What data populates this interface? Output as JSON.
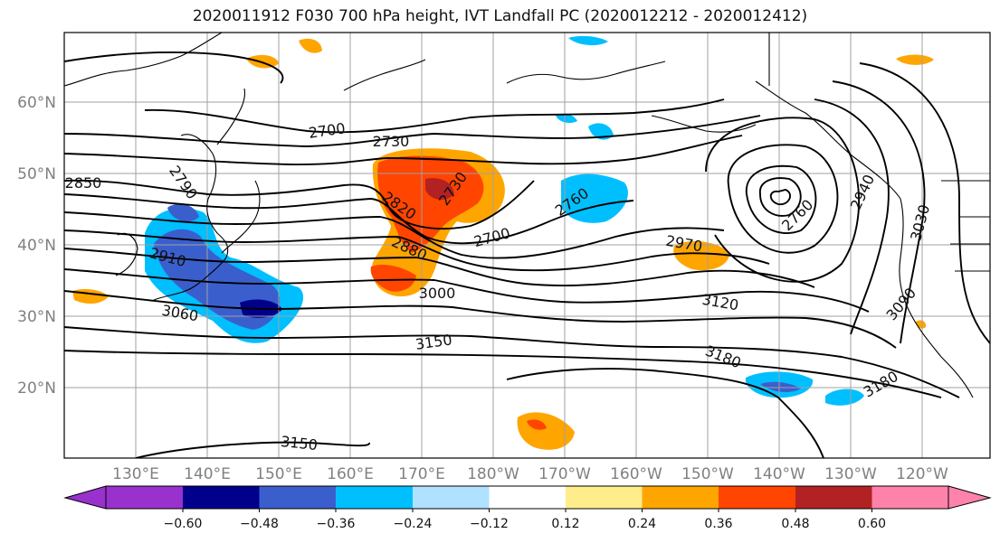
{
  "title": "2020011912 F030 700 hPa height, IVT Landfall PC (2020012212 - 2020012412)",
  "lat_labels": [
    "60°N",
    "50°N",
    "40°N",
    "30°N",
    "20°N"
  ],
  "lon_labels": [
    "130°E",
    "140°E",
    "150°E",
    "160°E",
    "170°E",
    "180°W",
    "170°W",
    "160°W",
    "150°W",
    "140°W",
    "130°W",
    "120°W"
  ],
  "contour_labels": [
    "2700",
    "2730",
    "2850",
    "2790",
    "2820",
    "2730",
    "2700",
    "2760",
    "2880",
    "2910",
    "3000",
    "3060",
    "2970",
    "3120",
    "3150",
    "3180",
    "3180",
    "3090",
    "3030",
    "2940",
    "2760",
    "3150"
  ],
  "colorbar": {
    "labels": [
      "−0.60",
      "−0.48",
      "−0.36",
      "−0.24",
      "−0.12",
      "0.12",
      "0.24",
      "0.36",
      "0.48",
      "0.60"
    ],
    "colors": [
      "#9932cc",
      "#00008b",
      "#3a5fcd",
      "#00bfff",
      "#b0e2ff",
      "#ffffff",
      "#ffec8b",
      "#ffa500",
      "#ff4500",
      "#b22222",
      "#ff82ab"
    ]
  },
  "colors": {
    "land": "#000000",
    "grid": "#a0a0a0",
    "contour": "#000000"
  }
}
